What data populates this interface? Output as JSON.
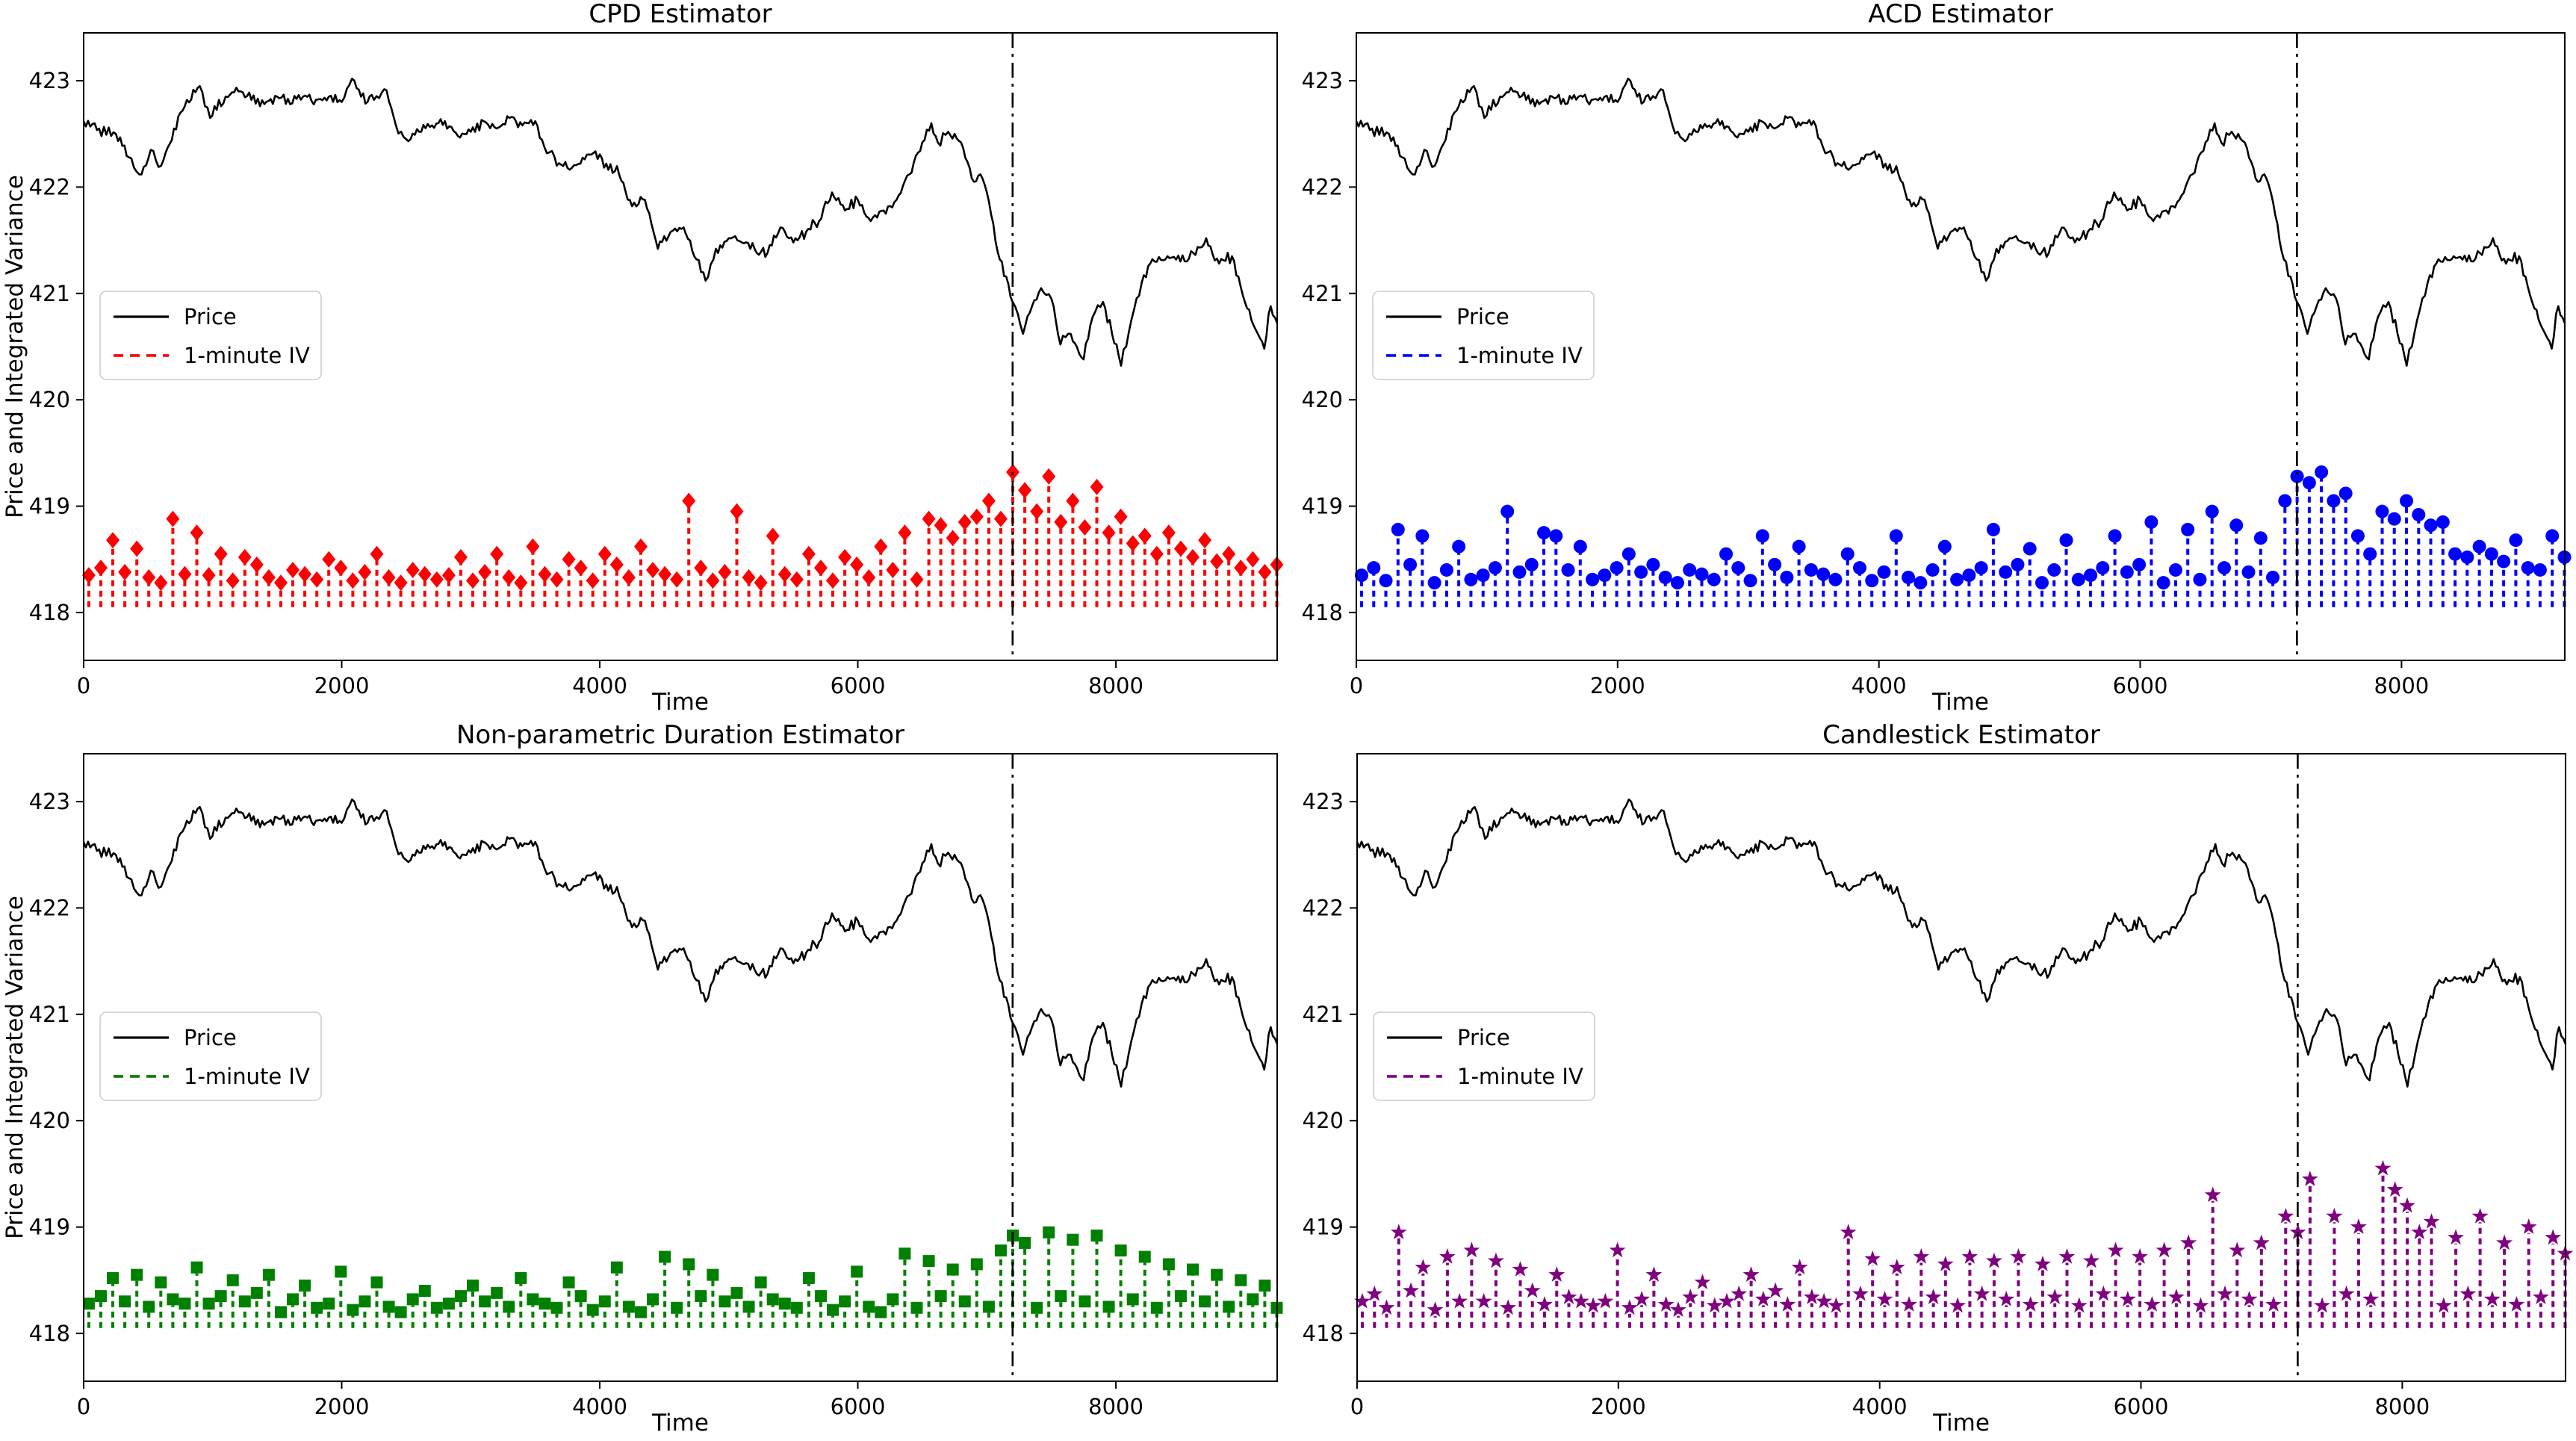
{
  "figure": {
    "background": "#ffffff",
    "rows": 2,
    "columns": 2
  },
  "chart_data": {
    "type": "line+stem",
    "layout": "2x2",
    "shared": {
      "xlabel": "Time",
      "ylabel": "Price and Integrated Variance",
      "xticks": [
        0,
        2000,
        4000,
        6000,
        8000
      ],
      "yticks": [
        418,
        419,
        420,
        421,
        422,
        423
      ],
      "xlim": [
        0,
        9250
      ],
      "ylim": [
        417.55,
        423.45
      ],
      "grid": false,
      "vline_x": 7200,
      "vline_style": "dashdot",
      "vline_color": "#000000",
      "legend_entries": [
        "Price",
        "1-minute IV"
      ],
      "legend_position": "center-left",
      "price_color": "#000000",
      "price_anchors": [
        [
          0,
          422.62
        ],
        [
          120,
          422.55
        ],
        [
          250,
          422.5
        ],
        [
          350,
          422.28
        ],
        [
          430,
          422.12
        ],
        [
          520,
          422.35
        ],
        [
          600,
          422.2
        ],
        [
          700,
          422.55
        ],
        [
          800,
          422.82
        ],
        [
          900,
          422.95
        ],
        [
          980,
          422.65
        ],
        [
          1100,
          422.85
        ],
        [
          1200,
          422.9
        ],
        [
          1300,
          422.82
        ],
        [
          1400,
          422.78
        ],
        [
          1500,
          422.85
        ],
        [
          1600,
          422.78
        ],
        [
          1700,
          422.85
        ],
        [
          1800,
          422.82
        ],
        [
          1900,
          422.85
        ],
        [
          2000,
          422.8
        ],
        [
          2080,
          423.02
        ],
        [
          2150,
          422.85
        ],
        [
          2250,
          422.82
        ],
        [
          2330,
          422.92
        ],
        [
          2420,
          422.58
        ],
        [
          2500,
          422.45
        ],
        [
          2600,
          422.52
        ],
        [
          2700,
          422.58
        ],
        [
          2800,
          422.62
        ],
        [
          2900,
          422.48
        ],
        [
          3000,
          422.52
        ],
        [
          3100,
          422.62
        ],
        [
          3200,
          422.55
        ],
        [
          3300,
          422.65
        ],
        [
          3400,
          422.58
        ],
        [
          3500,
          422.62
        ],
        [
          3570,
          422.38
        ],
        [
          3650,
          422.28
        ],
        [
          3750,
          422.18
        ],
        [
          3850,
          422.22
        ],
        [
          3950,
          422.32
        ],
        [
          4050,
          422.22
        ],
        [
          4150,
          422.12
        ],
        [
          4250,
          421.82
        ],
        [
          4350,
          421.88
        ],
        [
          4450,
          421.42
        ],
        [
          4550,
          421.58
        ],
        [
          4650,
          421.62
        ],
        [
          4750,
          421.32
        ],
        [
          4820,
          421.12
        ],
        [
          4900,
          421.42
        ],
        [
          5000,
          421.52
        ],
        [
          5100,
          421.48
        ],
        [
          5200,
          421.42
        ],
        [
          5300,
          421.38
        ],
        [
          5400,
          421.62
        ],
        [
          5500,
          421.48
        ],
        [
          5600,
          421.58
        ],
        [
          5700,
          421.68
        ],
        [
          5800,
          421.95
        ],
        [
          5900,
          421.78
        ],
        [
          6000,
          421.88
        ],
        [
          6100,
          421.68
        ],
        [
          6200,
          421.78
        ],
        [
          6300,
          421.88
        ],
        [
          6400,
          422.12
        ],
        [
          6500,
          422.42
        ],
        [
          6570,
          422.6
        ],
        [
          6620,
          422.42
        ],
        [
          6700,
          422.52
        ],
        [
          6800,
          422.42
        ],
        [
          6900,
          422.05
        ],
        [
          6950,
          422.12
        ],
        [
          7000,
          421.95
        ],
        [
          7100,
          421.32
        ],
        [
          7200,
          420.92
        ],
        [
          7280,
          420.62
        ],
        [
          7350,
          420.88
        ],
        [
          7420,
          421.05
        ],
        [
          7500,
          420.95
        ],
        [
          7570,
          420.52
        ],
        [
          7650,
          420.62
        ],
        [
          7750,
          420.38
        ],
        [
          7820,
          420.78
        ],
        [
          7900,
          420.92
        ],
        [
          7970,
          420.62
        ],
        [
          8040,
          420.32
        ],
        [
          8120,
          420.75
        ],
        [
          8200,
          421.1
        ],
        [
          8300,
          421.3
        ],
        [
          8400,
          421.35
        ],
        [
          8500,
          421.3
        ],
        [
          8600,
          421.38
        ],
        [
          8700,
          421.52
        ],
        [
          8800,
          421.28
        ],
        [
          8900,
          421.35
        ],
        [
          9000,
          420.92
        ],
        [
          9100,
          420.62
        ],
        [
          9150,
          420.48
        ],
        [
          9200,
          420.88
        ],
        [
          9250,
          420.72
        ]
      ]
    },
    "panels": [
      {
        "title": "CPD Estimator",
        "series_name": "1-minute IV",
        "stem_color": "#ff0000",
        "marker": "diamond",
        "has_ylabel": true,
        "stem_baseline": 418.05,
        "stem_x_start": 40,
        "stem_x_step": 93,
        "stem_values": [
          418.35,
          418.42,
          418.68,
          418.38,
          418.6,
          418.33,
          418.28,
          418.88,
          418.36,
          418.75,
          418.35,
          418.55,
          418.3,
          418.52,
          418.45,
          418.33,
          418.28,
          418.4,
          418.36,
          418.31,
          418.5,
          418.42,
          418.3,
          418.38,
          418.55,
          418.33,
          418.28,
          418.4,
          418.36,
          418.31,
          418.35,
          418.52,
          418.3,
          418.38,
          418.55,
          418.33,
          418.28,
          418.62,
          418.36,
          418.31,
          418.5,
          418.42,
          418.3,
          418.55,
          418.45,
          418.33,
          418.62,
          418.4,
          418.36,
          418.31,
          419.05,
          418.42,
          418.3,
          418.38,
          418.95,
          418.33,
          418.28,
          418.72,
          418.36,
          418.31,
          418.55,
          418.42,
          418.3,
          418.52,
          418.45,
          418.33,
          418.62,
          418.4,
          418.75,
          418.31,
          418.88,
          418.82,
          418.7,
          418.85,
          418.9,
          419.05,
          418.88,
          419.32,
          419.15,
          418.95,
          419.28,
          418.85,
          419.05,
          418.8,
          419.18,
          418.75,
          418.9,
          418.65,
          418.72,
          418.55,
          418.75,
          418.6,
          418.52,
          418.68,
          418.48,
          418.55,
          418.42,
          418.5,
          418.38,
          418.45
        ]
      },
      {
        "title": "ACD Estimator",
        "series_name": "1-minute IV",
        "stem_color": "#0000ff",
        "marker": "circle",
        "has_ylabel": false,
        "stem_baseline": 418.05,
        "stem_x_start": 40,
        "stem_x_step": 93,
        "stem_values": [
          418.35,
          418.42,
          418.3,
          418.78,
          418.45,
          418.72,
          418.28,
          418.4,
          418.62,
          418.31,
          418.35,
          418.42,
          418.95,
          418.38,
          418.45,
          418.75,
          418.72,
          418.4,
          418.62,
          418.31,
          418.35,
          418.42,
          418.55,
          418.38,
          418.45,
          418.33,
          418.28,
          418.4,
          418.36,
          418.31,
          418.55,
          418.42,
          418.3,
          418.72,
          418.45,
          418.33,
          418.62,
          418.4,
          418.36,
          418.31,
          418.55,
          418.42,
          418.3,
          418.38,
          418.72,
          418.33,
          418.28,
          418.4,
          418.62,
          418.31,
          418.35,
          418.42,
          418.78,
          418.38,
          418.45,
          418.6,
          418.28,
          418.4,
          418.68,
          418.31,
          418.35,
          418.42,
          418.72,
          418.38,
          418.45,
          418.85,
          418.28,
          418.4,
          418.78,
          418.31,
          418.95,
          418.42,
          418.82,
          418.38,
          418.7,
          418.33,
          419.05,
          419.28,
          419.22,
          419.32,
          419.05,
          419.12,
          418.72,
          418.55,
          418.95,
          418.88,
          419.05,
          418.92,
          418.82,
          418.85,
          418.55,
          418.52,
          418.62,
          418.55,
          418.48,
          418.68,
          418.42,
          418.4,
          418.72,
          418.52
        ]
      },
      {
        "title": "Non-parametric Duration Estimator",
        "series_name": "1-minute IV",
        "stem_color": "#008000",
        "marker": "square",
        "has_ylabel": true,
        "stem_baseline": 418.05,
        "stem_x_start": 40,
        "stem_x_step": 93,
        "stem_values": [
          418.28,
          418.35,
          418.52,
          418.3,
          418.55,
          418.25,
          418.48,
          418.32,
          418.28,
          418.62,
          418.28,
          418.35,
          418.5,
          418.3,
          418.38,
          418.55,
          418.2,
          418.32,
          418.45,
          418.24,
          418.28,
          418.58,
          418.22,
          418.3,
          418.48,
          418.25,
          418.2,
          418.32,
          418.4,
          418.24,
          418.28,
          418.35,
          418.45,
          418.3,
          418.38,
          418.25,
          418.52,
          418.32,
          418.28,
          418.24,
          418.48,
          418.35,
          418.22,
          418.3,
          418.62,
          418.25,
          418.2,
          418.32,
          418.72,
          418.24,
          418.65,
          418.35,
          418.55,
          418.3,
          418.38,
          418.25,
          418.48,
          418.32,
          418.28,
          418.24,
          418.52,
          418.35,
          418.22,
          418.3,
          418.58,
          418.25,
          418.2,
          418.32,
          418.75,
          418.24,
          418.68,
          418.35,
          418.6,
          418.3,
          418.65,
          418.25,
          418.78,
          418.92,
          418.85,
          418.24,
          418.95,
          418.35,
          418.88,
          418.3,
          418.92,
          418.25,
          418.78,
          418.32,
          418.72,
          418.24,
          418.65,
          418.35,
          418.6,
          418.3,
          418.55,
          418.25,
          418.5,
          418.32,
          418.45,
          418.24
        ]
      },
      {
        "title": "Candlestick Estimator",
        "series_name": "1-minute IV",
        "stem_color": "#800080",
        "marker": "star",
        "has_ylabel": false,
        "stem_baseline": 418.05,
        "stem_x_start": 40,
        "stem_x_step": 93,
        "stem_values": [
          418.3,
          418.37,
          418.24,
          418.95,
          418.4,
          418.62,
          418.22,
          418.72,
          418.3,
          418.78,
          418.3,
          418.68,
          418.24,
          418.6,
          418.4,
          418.27,
          418.55,
          418.34,
          418.3,
          418.26,
          418.3,
          418.78,
          418.24,
          418.32,
          418.55,
          418.27,
          418.22,
          418.34,
          418.48,
          418.26,
          418.3,
          418.37,
          418.55,
          418.32,
          418.4,
          418.27,
          418.62,
          418.34,
          418.3,
          418.26,
          418.95,
          418.37,
          418.7,
          418.32,
          418.62,
          418.27,
          418.72,
          418.34,
          418.65,
          418.26,
          418.72,
          418.37,
          418.68,
          418.32,
          418.72,
          418.27,
          418.65,
          418.34,
          418.72,
          418.26,
          418.68,
          418.37,
          418.78,
          418.32,
          418.72,
          418.27,
          418.78,
          418.34,
          418.85,
          418.26,
          419.3,
          418.37,
          418.78,
          418.32,
          418.85,
          418.27,
          419.1,
          418.95,
          419.45,
          418.26,
          419.1,
          418.37,
          419.0,
          418.32,
          419.55,
          419.35,
          419.2,
          418.95,
          419.05,
          418.26,
          418.9,
          418.37,
          419.1,
          418.32,
          418.85,
          418.27,
          419.0,
          418.34,
          418.9,
          418.75
        ]
      }
    ]
  }
}
